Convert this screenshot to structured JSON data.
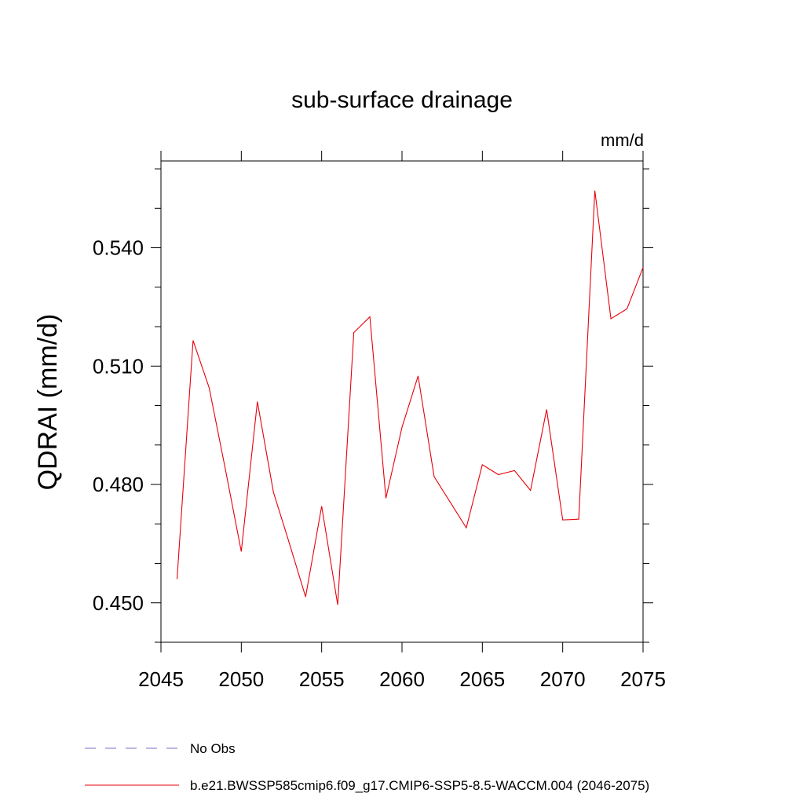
{
  "chart_data": {
    "type": "line",
    "title": "sub-surface drainage",
    "units": "mm/d",
    "ylabel": "QDRAI  (mm/d)",
    "xlabel": "",
    "xlim": [
      2045,
      2075
    ],
    "ylim": [
      0.44,
      0.562
    ],
    "xticks": [
      2045,
      2050,
      2055,
      2060,
      2065,
      2070,
      2075
    ],
    "xtick_labels": [
      "2045",
      "2050",
      "2055",
      "2060",
      "2065",
      "2070",
      "2075"
    ],
    "yticks": [
      0.45,
      0.48,
      0.51,
      0.54
    ],
    "ytick_labels": [
      "0.450",
      "0.480",
      "0.510",
      "0.540"
    ],
    "grid": false,
    "legend_position": "bottom",
    "legend": [
      {
        "label": "No Obs",
        "color": "#7b6fc0",
        "style": "dashed"
      },
      {
        "label": "b.e21.BWSSP585cmip6.f09_g17.CMIP6-SSP5-8.5-WACCM.004 (2046-2075)",
        "color": "#e8000b",
        "style": "solid"
      }
    ],
    "series": [
      {
        "color": "#e8000b",
        "x": [
          2046,
          2047,
          2048,
          2049,
          2050,
          2051,
          2052,
          2053,
          2054,
          2055,
          2056,
          2057,
          2058,
          2059,
          2060,
          2061,
          2062,
          2063,
          2064,
          2065,
          2066,
          2067,
          2068,
          2069,
          2070,
          2071,
          2072,
          2073,
          2074,
          2075
        ],
        "values": [
          0.456,
          0.5165,
          0.5045,
          0.484,
          0.463,
          0.501,
          0.478,
          0.465,
          0.4515,
          0.4745,
          0.4495,
          0.5185,
          0.5225,
          0.4765,
          0.4945,
          0.5075,
          0.482,
          0.4755,
          0.469,
          0.485,
          0.4825,
          0.4835,
          0.4785,
          0.499,
          0.471,
          0.4712,
          0.5545,
          0.522,
          0.5245,
          0.535
        ]
      }
    ]
  }
}
